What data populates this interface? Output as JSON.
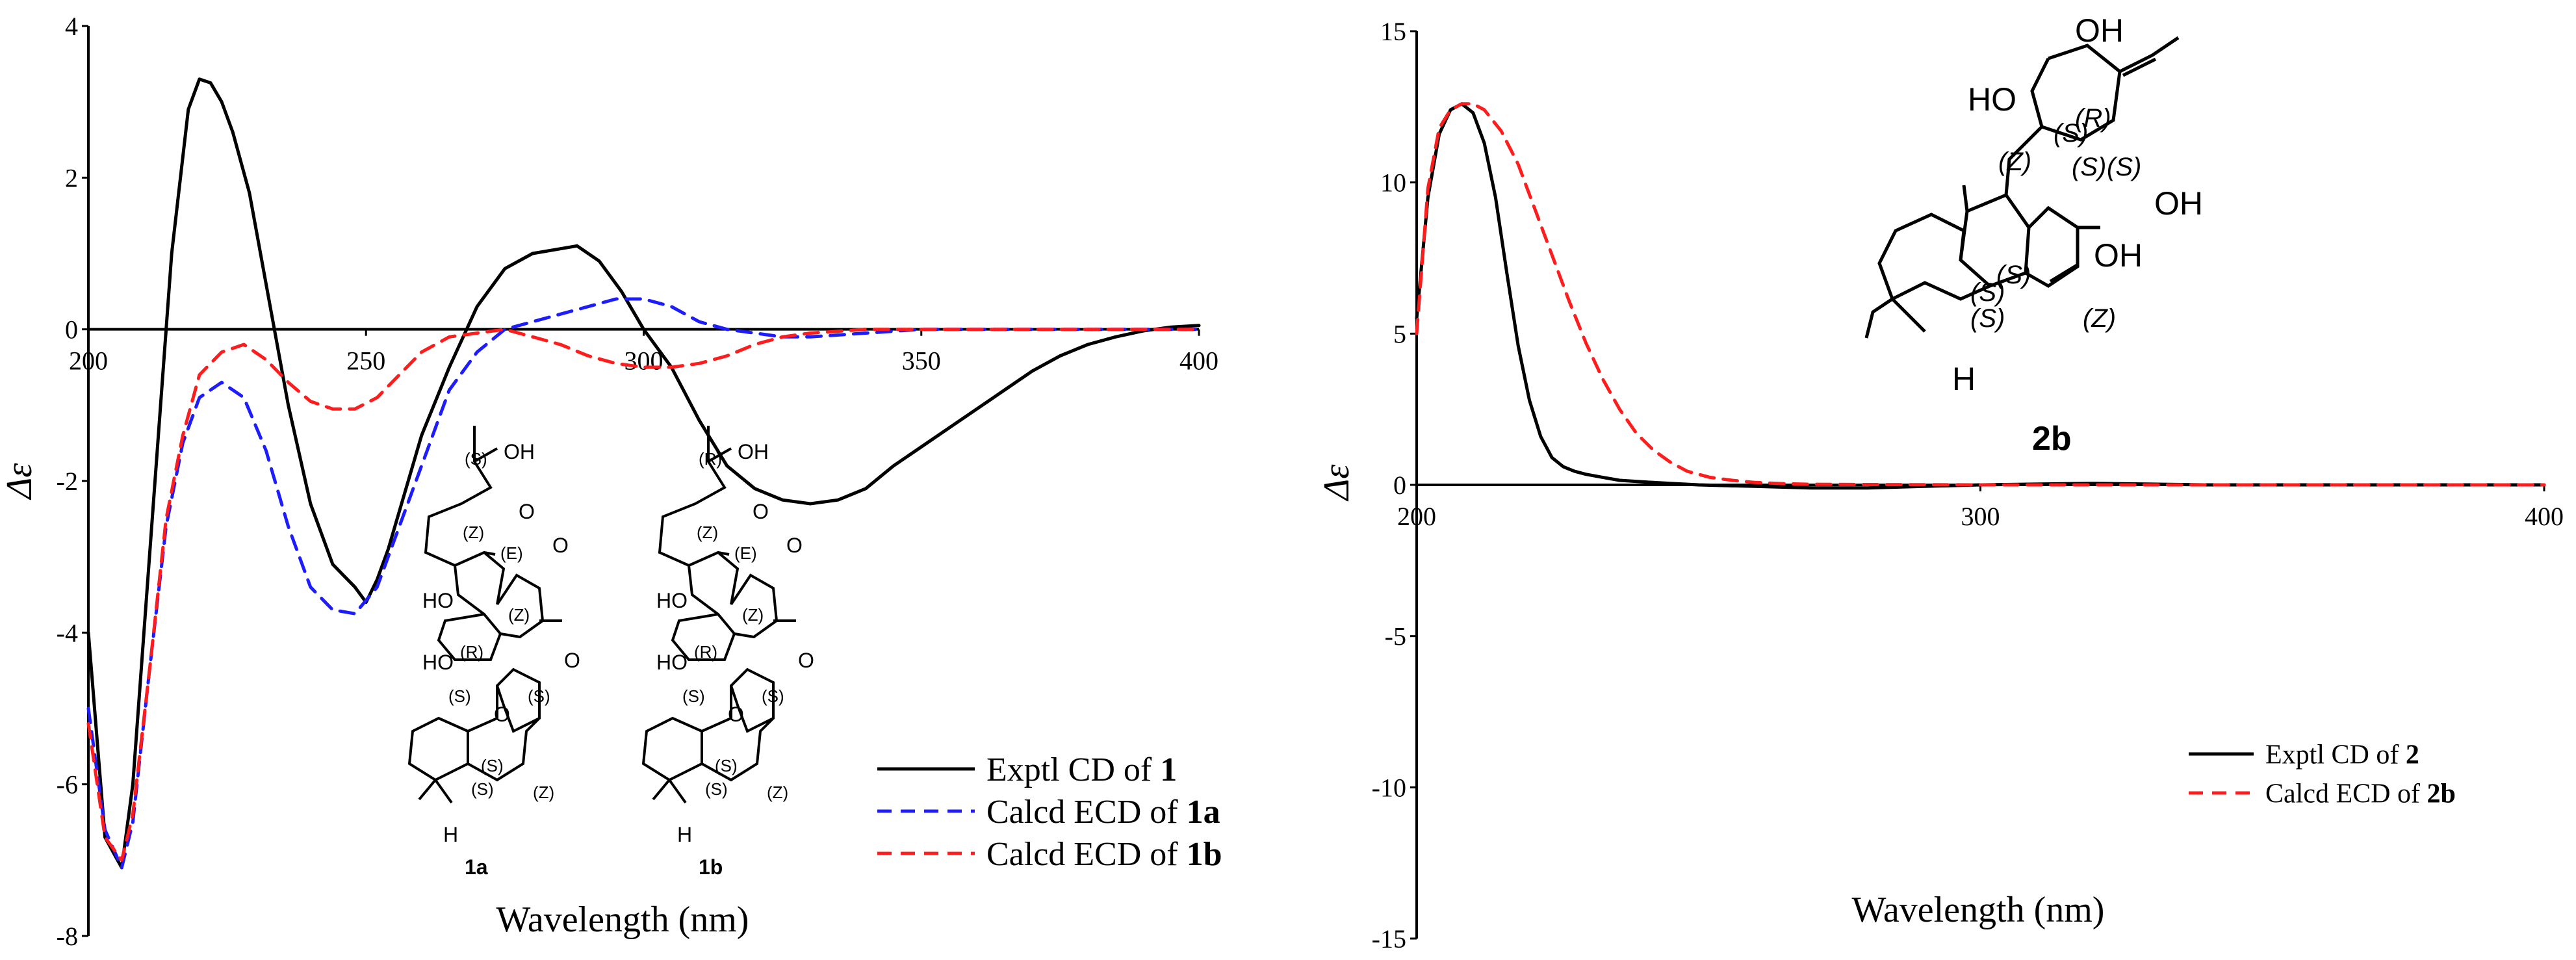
{
  "chart_data": [
    {
      "type": "line",
      "xlabel": "Wavelength (nm)",
      "ylabel": "Δε",
      "xlim": [
        200,
        400
      ],
      "ylim": [
        -8,
        4
      ],
      "xticks": [
        200,
        250,
        300,
        350,
        400
      ],
      "yticks": [
        4,
        2,
        0,
        -2,
        -4,
        -6,
        -8
      ],
      "series": [
        {
          "name": "Exptl CD of 1",
          "label_prefix": "Exptl CD of ",
          "label_bold": "1",
          "color": "#000000",
          "dash": "solid",
          "x": [
            200,
            203,
            206,
            208,
            211,
            215,
            218,
            220,
            222,
            224,
            226,
            229,
            232,
            236,
            240,
            244,
            248,
            250,
            252,
            254,
            256,
            260,
            265,
            270,
            275,
            280,
            284,
            288,
            292,
            296,
            300,
            305,
            310,
            315,
            320,
            325,
            330,
            335,
            340,
            345,
            350,
            355,
            360,
            365,
            370,
            375,
            380,
            385,
            390,
            395,
            400
          ],
          "y": [
            -4.0,
            -6.7,
            -7.1,
            -6.0,
            -3.0,
            1.0,
            2.9,
            3.3,
            3.25,
            3.0,
            2.6,
            1.8,
            0.6,
            -1.0,
            -2.3,
            -3.1,
            -3.4,
            -3.6,
            -3.3,
            -2.9,
            -2.4,
            -1.4,
            -0.5,
            0.3,
            0.8,
            1.0,
            1.05,
            1.1,
            0.9,
            0.5,
            0.0,
            -0.5,
            -1.2,
            -1.8,
            -2.1,
            -2.25,
            -2.3,
            -2.25,
            -2.1,
            -1.8,
            -1.55,
            -1.3,
            -1.05,
            -0.8,
            -0.55,
            -0.35,
            -0.2,
            -0.1,
            -0.02,
            0.03,
            0.05
          ]
        },
        {
          "name": "Calcd ECD of 1a",
          "label_prefix": "Calcd ECD of ",
          "label_bold": "1a",
          "color": "#1c1cff",
          "dash": "dashed",
          "x": [
            200,
            203,
            206,
            208,
            211,
            214,
            217,
            220,
            224,
            228,
            232,
            236,
            240,
            244,
            248,
            252,
            256,
            260,
            265,
            270,
            275,
            280,
            285,
            290,
            295,
            300,
            305,
            310,
            315,
            320,
            325,
            330,
            340,
            350,
            360,
            370,
            380,
            390,
            400
          ],
          "y": [
            -5.0,
            -6.6,
            -7.1,
            -6.5,
            -4.5,
            -2.6,
            -1.5,
            -0.9,
            -0.7,
            -0.9,
            -1.6,
            -2.6,
            -3.4,
            -3.7,
            -3.75,
            -3.4,
            -2.6,
            -1.8,
            -0.8,
            -0.3,
            0.0,
            0.1,
            0.2,
            0.3,
            0.4,
            0.4,
            0.3,
            0.1,
            0.0,
            -0.05,
            -0.1,
            -0.1,
            -0.05,
            0.0,
            0.0,
            0.0,
            0.0,
            0.0,
            0.0
          ]
        },
        {
          "name": "Calcd ECD of 1b",
          "label_prefix": "Calcd ECD of ",
          "label_bold": "1b",
          "color": "#ff1c1c",
          "dash": "dashed",
          "x": [
            200,
            203,
            206,
            208,
            211,
            214,
            217,
            220,
            224,
            228,
            232,
            236,
            240,
            244,
            248,
            252,
            256,
            260,
            265,
            270,
            275,
            280,
            285,
            290,
            295,
            300,
            305,
            310,
            315,
            320,
            325,
            330,
            340,
            350,
            360,
            370,
            380,
            390,
            400
          ],
          "y": [
            -5.2,
            -6.7,
            -7.0,
            -6.4,
            -4.5,
            -2.5,
            -1.4,
            -0.6,
            -0.3,
            -0.2,
            -0.4,
            -0.7,
            -0.95,
            -1.05,
            -1.05,
            -0.9,
            -0.6,
            -0.3,
            -0.1,
            -0.05,
            0.0,
            -0.1,
            -0.2,
            -0.35,
            -0.45,
            -0.5,
            -0.5,
            -0.45,
            -0.35,
            -0.2,
            -0.1,
            -0.05,
            0.0,
            0.0,
            0.0,
            0.0,
            0.0,
            0.0,
            0.0
          ]
        }
      ],
      "legend_position": "bottom-right",
      "structures": [
        {
          "id": "1a",
          "labels": [
            "(S)",
            "OH",
            "(Z)",
            "(E)",
            "O",
            "O",
            "HO",
            "(Z)",
            "O",
            "HO",
            "(R)",
            "(S)",
            "(S)",
            "O",
            "(S)",
            "(S)",
            "(Z)",
            "H",
            "1a"
          ]
        },
        {
          "id": "1b",
          "labels": [
            "(R)",
            "OH",
            "(Z)",
            "(E)",
            "O",
            "O",
            "HO",
            "(Z)",
            "O",
            "HO",
            "(R)",
            "(S)",
            "(S)",
            "O",
            "(S)",
            "(S)",
            "(Z)",
            "H",
            "1b"
          ]
        }
      ]
    },
    {
      "type": "line",
      "xlabel": "Wavelength (nm)",
      "ylabel": "Δε",
      "xlim": [
        200,
        400
      ],
      "ylim": [
        -15,
        15
      ],
      "xticks": [
        200,
        300,
        400
      ],
      "yticks": [
        15,
        10,
        5,
        0,
        -5,
        -10,
        -15
      ],
      "series": [
        {
          "name": "Exptl CD of 2",
          "label_prefix": "Exptl CD of ",
          "label_bold": "2",
          "color": "#000000",
          "dash": "solid",
          "x": [
            200,
            202,
            204,
            206,
            208,
            210,
            212,
            214,
            216,
            218,
            220,
            222,
            224,
            226,
            228,
            230,
            233,
            236,
            240,
            245,
            250,
            260,
            270,
            280,
            290,
            300,
            320,
            340,
            360,
            380,
            400
          ],
          "y": [
            5.5,
            9.5,
            11.6,
            12.4,
            12.6,
            12.3,
            11.3,
            9.5,
            7.0,
            4.6,
            2.8,
            1.6,
            0.9,
            0.6,
            0.45,
            0.35,
            0.25,
            0.15,
            0.1,
            0.05,
            0.0,
            -0.05,
            -0.1,
            -0.1,
            -0.05,
            0.0,
            0.05,
            0.0,
            0.0,
            0.0,
            0.0
          ]
        },
        {
          "name": "Calcd ECD of 2b",
          "label_prefix": "Calcd ECD of ",
          "label_bold": "2b",
          "color": "#ff1c1c",
          "dash": "dashed",
          "x": [
            200,
            202,
            204,
            206,
            208,
            210,
            212,
            215,
            218,
            221,
            224,
            227,
            230,
            233,
            236,
            239,
            242,
            245,
            248,
            252,
            256,
            260,
            265,
            270,
            280,
            300,
            330,
            360,
            400
          ],
          "y": [
            5.0,
            9.8,
            11.8,
            12.4,
            12.6,
            12.6,
            12.4,
            11.7,
            10.6,
            9.1,
            7.6,
            6.1,
            4.7,
            3.5,
            2.5,
            1.7,
            1.15,
            0.75,
            0.45,
            0.25,
            0.15,
            0.08,
            0.04,
            0.02,
            0.01,
            0.0,
            0.0,
            0.0,
            0.0
          ]
        }
      ],
      "legend_position": "bottom-right",
      "structure": {
        "id": "2b",
        "labels": [
          "OH",
          "HO",
          "(R)",
          "(S)",
          "(S)",
          "(S)",
          "(Z)",
          "OH",
          "OH",
          "(S)",
          "(S)",
          "(S)",
          "(Z)",
          "H",
          "2b"
        ]
      }
    }
  ]
}
